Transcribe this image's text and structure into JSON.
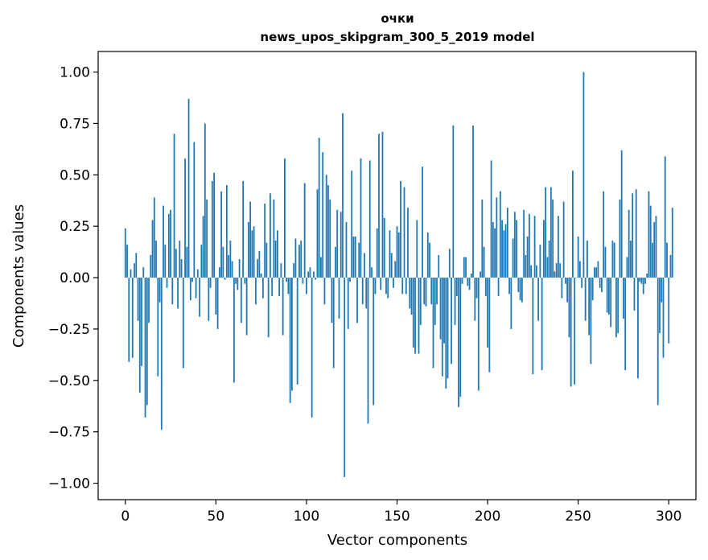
{
  "chart_data": {
    "type": "bar",
    "title": "очки",
    "subtitle": "news_upos_skipgram_300_5_2019 model",
    "xlabel": "Vector components",
    "ylabel": "Components values",
    "xlim": [
      -15,
      315
    ],
    "ylim": [
      -1.08,
      1.1
    ],
    "x_ticks": [
      0,
      50,
      100,
      150,
      200,
      250,
      300
    ],
    "x_tick_labels": [
      "0",
      "50",
      "100",
      "150",
      "200",
      "250",
      "300"
    ],
    "y_ticks": [
      1.0,
      0.75,
      0.5,
      0.25,
      0.0,
      -0.25,
      -0.5,
      -0.75,
      -1.0
    ],
    "y_tick_labels": [
      "1.00",
      "0.75",
      "0.50",
      "0.25",
      "0.00",
      "−0.25",
      "−0.50",
      "−0.75",
      "−1.00"
    ],
    "grid": false,
    "bar_color": "#1f77b4",
    "values": [
      0.24,
      0.16,
      -0.41,
      0.04,
      -0.39,
      0.07,
      0.12,
      -0.21,
      -0.56,
      -0.43,
      0.05,
      -0.68,
      -0.62,
      -0.22,
      0.11,
      0.28,
      0.39,
      0.18,
      -0.48,
      -0.12,
      -0.74,
      0.35,
      0.16,
      -0.05,
      0.31,
      0.33,
      -0.13,
      0.7,
      0.14,
      -0.15,
      0.18,
      0.09,
      -0.44,
      0.58,
      0.15,
      0.87,
      -0.11,
      -0.02,
      0.66,
      -0.1,
      0.04,
      -0.19,
      0.16,
      0.3,
      0.75,
      0.38,
      -0.21,
      -0.05,
      0.47,
      0.51,
      -0.18,
      -0.25,
      0.05,
      0.42,
      0.15,
      -0.01,
      0.45,
      0.11,
      0.18,
      0.08,
      -0.51,
      -0.03,
      -0.06,
      0.09,
      -0.22,
      0.47,
      -0.03,
      -0.28,
      0.27,
      0.37,
      0.23,
      0.25,
      -0.13,
      0.09,
      0.13,
      0.02,
      -0.1,
      0.36,
      0.17,
      -0.29,
      0.41,
      -0.09,
      0.38,
      0.18,
      0.23,
      -0.09,
      0.07,
      -0.28,
      0.58,
      -0.02,
      -0.08,
      -0.61,
      -0.55,
      0.07,
      0.19,
      -0.52,
      0.16,
      0.18,
      -0.03,
      0.46,
      -0.08,
      0.03,
      0.05,
      -0.68,
      0.03,
      -0.01,
      0.43,
      0.68,
      0.1,
      0.61,
      -0.13,
      0.5,
      0.45,
      0.38,
      -0.22,
      -0.44,
      0.15,
      0.33,
      -0.2,
      0.32,
      0.8,
      -0.97,
      0.27,
      -0.25,
      -0.02,
      0.52,
      0.2,
      0.2,
      -0.22,
      0.17,
      0.58,
      -0.13,
      0.12,
      -0.15,
      -0.71,
      0.57,
      0.05,
      -0.62,
      -0.08,
      0.24,
      0.7,
      -0.06,
      0.71,
      0.29,
      -0.08,
      -0.1,
      0.23,
      0.12,
      -0.05,
      0.08,
      0.25,
      0.22,
      0.47,
      -0.08,
      0.44,
      -0.08,
      0.34,
      -0.15,
      -0.18,
      -0.34,
      -0.37,
      0.28,
      -0.37,
      -0.23,
      0.54,
      -0.13,
      -0.14,
      0.22,
      0.17,
      -0.13,
      -0.44,
      -0.23,
      -0.13,
      0.11,
      -0.3,
      -0.48,
      -0.32,
      -0.54,
      -0.49,
      0.14,
      -0.42,
      0.74,
      -0.23,
      -0.09,
      -0.63,
      -0.58,
      -0.03,
      0.1,
      0.1,
      -0.04,
      -0.06,
      0.02,
      0.74,
      -0.21,
      -0.1,
      -0.55,
      0.03,
      0.38,
      0.15,
      -0.09,
      -0.34,
      -0.46,
      0.57,
      0.27,
      0.24,
      0.39,
      -0.09,
      0.42,
      0.28,
      0.23,
      0.26,
      0.34,
      -0.08,
      -0.25,
      0.19,
      0.32,
      0.28,
      -0.07,
      -0.11,
      -0.12,
      0.33,
      0.11,
      0.2,
      0.31,
      0.06,
      -0.47,
      0.3,
      0.06,
      -0.21,
      0.16,
      -0.45,
      0.28,
      0.44,
      0.1,
      0.18,
      0.44,
      0.38,
      0.03,
      0.07,
      0.3,
      0.07,
      -0.1,
      0.37,
      -0.03,
      -0.12,
      -0.29,
      -0.53,
      0.52,
      -0.52,
      0.0,
      0.2,
      0.08,
      -0.05,
      1.0,
      -0.21,
      0.18,
      -0.28,
      -0.42,
      -0.11,
      0.05,
      0.05,
      0.08,
      -0.05,
      -0.07,
      0.42,
      0.15,
      -0.17,
      -0.18,
      -0.24,
      0.18,
      0.17,
      -0.29,
      -0.27,
      0.38,
      0.62,
      -0.2,
      -0.45,
      0.1,
      0.33,
      0.18,
      0.41,
      -0.16,
      0.43,
      -0.49,
      -0.02,
      -0.03,
      -0.08,
      -0.03,
      0.02,
      0.42,
      0.35,
      0.17,
      0.27,
      0.3,
      -0.62,
      -0.27,
      -0.12,
      -0.39,
      0.59,
      0.17,
      -0.32,
      0.11,
      0.34
    ]
  }
}
